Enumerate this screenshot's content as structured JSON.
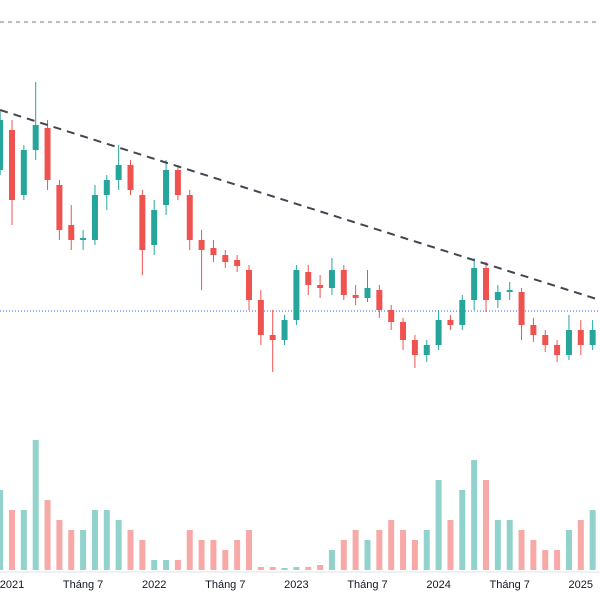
{
  "chart_data": {
    "type": "candlestick",
    "categories": [
      null,
      "2021",
      null,
      null,
      null,
      null,
      null,
      "Tháng 7",
      null,
      null,
      null,
      null,
      null,
      "2022",
      null,
      null,
      null,
      null,
      null,
      "Tháng 7",
      null,
      null,
      null,
      null,
      null,
      "2023",
      null,
      null,
      null,
      null,
      null,
      "Tháng 7",
      null,
      null,
      null,
      null,
      null,
      "2024",
      null,
      null,
      null,
      null,
      null,
      "Tháng 7",
      null,
      null,
      null,
      null,
      null,
      "2025",
      null
    ],
    "open": [
      26.0,
      30.0,
      23.5,
      28.0,
      30.2,
      24.5,
      20.5,
      19.0,
      19.0,
      23.5,
      25.0,
      26.5,
      23.5,
      18.5,
      22.5,
      26.0,
      23.5,
      19.0,
      18.2,
      17.5,
      17.0,
      16.0,
      13.0,
      9.5,
      9.0,
      11.0,
      15.8,
      14.5,
      14.2,
      16.0,
      13.5,
      13.2,
      14.0,
      12.0,
      10.8,
      9.0,
      7.5,
      8.5,
      11.0,
      10.5,
      13.0,
      16.2,
      13.0,
      13.8,
      13.8,
      10.5,
      9.5,
      8.5,
      7.5,
      10.0,
      8.5
    ],
    "high": [
      32.0,
      31.0,
      28.5,
      34.8,
      31.0,
      25.0,
      22.5,
      20.0,
      24.5,
      25.5,
      28.5,
      27.0,
      24.0,
      23.0,
      27.0,
      26.5,
      24.0,
      20.0,
      19.0,
      18.0,
      17.5,
      16.5,
      14.0,
      12.0,
      11.5,
      16.5,
      16.5,
      15.5,
      17.2,
      16.5,
      14.5,
      16.0,
      14.5,
      12.5,
      11.2,
      9.5,
      9.0,
      12.0,
      11.5,
      13.5,
      17.2,
      16.8,
      14.5,
      14.8,
      14.2,
      11.2,
      10.0,
      9.0,
      11.5,
      11.0,
      11.0
    ],
    "low": [
      25.5,
      20.5,
      23.0,
      27.0,
      24.0,
      19.0,
      18.0,
      18.0,
      18.5,
      22.0,
      24.0,
      23.5,
      15.5,
      17.5,
      21.5,
      23.0,
      18.0,
      14.0,
      16.8,
      16.2,
      15.8,
      12.0,
      8.5,
      5.8,
      8.5,
      10.5,
      13.5,
      13.2,
      13.5,
      13.0,
      12.5,
      12.8,
      11.2,
      10.0,
      8.0,
      6.2,
      6.8,
      8.0,
      10.0,
      10.0,
      12.0,
      11.8,
      12.2,
      13.0,
      9.0,
      8.8,
      7.8,
      6.8,
      7.0,
      7.5,
      8.0
    ],
    "close": [
      31.0,
      23.0,
      28.0,
      30.5,
      25.0,
      20.0,
      19.0,
      19.2,
      23.5,
      25.0,
      26.5,
      24.0,
      18.0,
      22.0,
      26.0,
      23.5,
      19.0,
      18.0,
      17.5,
      16.8,
      16.4,
      13.0,
      9.5,
      9.0,
      11.0,
      16.0,
      14.5,
      14.2,
      16.0,
      13.5,
      13.2,
      14.2,
      12.0,
      10.8,
      9.0,
      7.5,
      8.5,
      11.0,
      10.5,
      13.0,
      16.2,
      13.0,
      13.8,
      14.0,
      10.5,
      9.5,
      8.5,
      7.5,
      10.0,
      8.5,
      10.0
    ],
    "volume": [
      8,
      6,
      6,
      13,
      7,
      5,
      4,
      4,
      6,
      6,
      5,
      4,
      3,
      1,
      1,
      1,
      4,
      3,
      3,
      2,
      3,
      4,
      0.3,
      0.3,
      0.2,
      0.3,
      0.3,
      0.5,
      2,
      3,
      4,
      3,
      4,
      5,
      4,
      3,
      4,
      9,
      5,
      8,
      11,
      9,
      5,
      5,
      4,
      3,
      2,
      2,
      4,
      5,
      6
    ],
    "ylim": [
      0,
      43
    ],
    "volume_lim": [
      0,
      14
    ],
    "up_color": "#26a69a",
    "down_color": "#ef5350",
    "trendline": {
      "x": [
        0,
        50.6
      ],
      "y": [
        32,
        13
      ],
      "color": "#434651"
    },
    "reference_lines": [
      {
        "value": 11.9,
        "color": "#2962ff",
        "style": "dotted"
      },
      {
        "value": 40.8,
        "color": "#787b86",
        "style": "dashed"
      }
    ]
  }
}
